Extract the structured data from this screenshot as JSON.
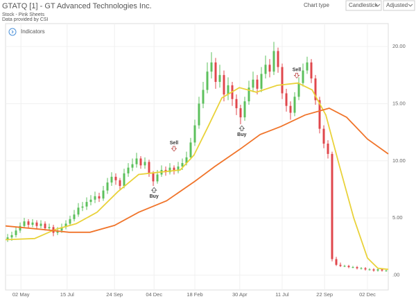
{
  "toolbar": {
    "chart_type_label": "Chart type",
    "chart_type": "Candlestick",
    "adjustment": "Adjusted",
    "indicators": "Indicators"
  },
  "chart_data": {
    "type": "candlestick",
    "title": "GTATQ [1] - GT Advanced Technologies Inc.",
    "subtitle": [
      "Stock - Pink Sheets",
      "Data provided by CSI"
    ],
    "up_color": "#5cc05c",
    "down_color": "#e0474c",
    "open": [
      3.1,
      3.3,
      3.5,
      3.9,
      4.3,
      4.7,
      4.4,
      4.6,
      4.3,
      4.5,
      4.1,
      4.2,
      3.7,
      3.9,
      4.2,
      4.5,
      4.9,
      5.3,
      5.9,
      6.0,
      6.4,
      6.6,
      6.9,
      6.7,
      7.4,
      8.1,
      8.6,
      8.3,
      7.8,
      8.9,
      9.4,
      9.7,
      10.2,
      9.6,
      9.9,
      8.9,
      8.2,
      8.8,
      9.2,
      9.0,
      9.4,
      9.1,
      9.5,
      9.8,
      10.3,
      11.6,
      13.1,
      15.0,
      16.2,
      17.8,
      18.6,
      16.9,
      17.5,
      15.8,
      16.6,
      15.4,
      14.6,
      13.8,
      15.2,
      16.4,
      17.1,
      16.3,
      17.6,
      18.4,
      17.8,
      19.6,
      18.2,
      15.9,
      14.8,
      14.2,
      15.6,
      16.8,
      17.9,
      18.6,
      17.2,
      15.3,
      12.8,
      11.5,
      10.6,
      1.4,
      0.9,
      0.8,
      0.8,
      0.7,
      0.7,
      0.6,
      0.6,
      0.5,
      0.5,
      0.4,
      0.5,
      0.4
    ],
    "high": [
      3.6,
      3.8,
      4.2,
      4.6,
      5.0,
      4.9,
      4.9,
      4.8,
      4.8,
      4.7,
      4.5,
      4.4,
      4.2,
      4.5,
      4.8,
      5.2,
      5.7,
      6.3,
      6.4,
      6.8,
      7.0,
      7.3,
      7.2,
      7.8,
      8.5,
      9.0,
      8.9,
      8.5,
      9.3,
      9.8,
      10.2,
      10.7,
      10.4,
      10.3,
      10.1,
      9.1,
      9.2,
      9.6,
      9.5,
      9.8,
      9.6,
      9.9,
      10.2,
      10.8,
      12.0,
      13.6,
      15.6,
      16.9,
      18.6,
      19.5,
      19.0,
      18.4,
      17.9,
      17.3,
      16.9,
      15.8,
      14.9,
      15.6,
      17.0,
      17.8,
      17.5,
      18.2,
      19.2,
      18.9,
      20.4,
      19.9,
      18.5,
      16.3,
      15.2,
      16.0,
      17.3,
      18.5,
      19.1,
      18.9,
      17.5,
      15.6,
      13.1,
      11.8,
      10.8,
      1.6,
      1.1,
      0.9,
      0.9,
      0.8,
      0.8,
      0.7,
      0.7,
      0.6,
      0.6,
      0.6,
      0.6,
      0.5
    ],
    "low": [
      2.9,
      3.0,
      3.3,
      3.7,
      4.1,
      4.1,
      4.2,
      4.0,
      4.1,
      3.9,
      3.9,
      3.4,
      3.5,
      3.7,
      4.0,
      4.3,
      4.7,
      5.1,
      5.6,
      5.7,
      6.1,
      6.3,
      6.4,
      6.5,
      7.1,
      7.8,
      7.9,
      7.4,
      7.6,
      8.6,
      9.1,
      9.4,
      9.3,
      9.3,
      8.6,
      7.8,
      8.0,
      8.6,
      8.7,
      8.8,
      8.8,
      8.9,
      9.2,
      9.6,
      10.1,
      11.3,
      12.8,
      14.6,
      15.9,
      17.2,
      16.3,
      16.4,
      15.2,
      15.3,
      14.8,
      14.0,
      13.2,
      13.5,
      14.9,
      16.0,
      15.8,
      16.0,
      17.2,
      17.3,
      17.5,
      17.7,
      15.4,
      14.3,
      13.6,
      13.9,
      15.3,
      16.5,
      17.6,
      16.8,
      14.9,
      12.4,
      11.1,
      10.2,
      1.2,
      0.8,
      0.7,
      0.7,
      0.6,
      0.6,
      0.5,
      0.5,
      0.4,
      0.4,
      0.3,
      0.3,
      0.3,
      0.3
    ],
    "close": [
      3.3,
      3.5,
      3.9,
      4.3,
      4.7,
      4.4,
      4.6,
      4.3,
      4.5,
      4.1,
      4.2,
      3.7,
      3.9,
      4.2,
      4.5,
      4.9,
      5.3,
      5.9,
      6.0,
      6.4,
      6.6,
      6.9,
      6.7,
      7.4,
      8.1,
      8.6,
      8.3,
      7.8,
      8.9,
      9.4,
      9.7,
      10.2,
      9.6,
      9.9,
      8.9,
      8.2,
      8.8,
      9.2,
      9.0,
      9.4,
      9.1,
      9.5,
      9.8,
      10.3,
      11.6,
      13.1,
      15.0,
      16.2,
      17.8,
      18.6,
      16.9,
      17.5,
      15.8,
      16.6,
      15.4,
      14.6,
      13.8,
      15.2,
      16.4,
      17.1,
      16.3,
      17.6,
      18.4,
      17.8,
      19.6,
      18.2,
      15.9,
      14.8,
      14.2,
      15.6,
      16.8,
      17.9,
      18.6,
      17.2,
      15.3,
      12.8,
      11.5,
      10.6,
      1.4,
      0.9,
      0.8,
      0.8,
      0.7,
      0.7,
      0.6,
      0.6,
      0.5,
      0.5,
      0.4,
      0.5,
      0.4,
      0.4
    ],
    "overlays": [
      {
        "color": "#e9d23a",
        "x": [
          -0.5,
          6.5,
          11.5,
          16.5,
          21.5,
          26.5,
          31.5,
          36.5,
          41.5,
          44.8,
          48.2,
          51.5,
          55.7,
          59.8,
          64.8,
          69.8,
          73.2,
          76.5,
          79.8,
          83.2,
          86.5,
          89,
          91.5
        ],
        "values": [
          3.1,
          3.2,
          4.0,
          4.5,
          5.5,
          7.3,
          8.8,
          9.0,
          9.2,
          10.5,
          13.0,
          15.5,
          16.4,
          16.0,
          16.6,
          16.8,
          16.2,
          14.0,
          9.5,
          5.0,
          1.5,
          0.6,
          0.5
        ]
      },
      {
        "color": "#f0742a",
        "x": [
          -0.5,
          8.2,
          14.8,
          19.8,
          25.7,
          31.5,
          38.2,
          45,
          49.8,
          55.8,
          60.7,
          65.7,
          71.5,
          77.3,
          81.5,
          86.5,
          91.5
        ],
        "values": [
          4.3,
          4.0,
          3.75,
          3.75,
          4.35,
          5.5,
          6.5,
          8.2,
          9.5,
          11.0,
          12.3,
          13.0,
          14.0,
          14.6,
          13.8,
          11.9,
          10.6
        ]
      }
    ],
    "annotations": [
      {
        "text": "Sell",
        "x": 40,
        "y": 10.9,
        "direction": "down"
      },
      {
        "text": "Buy",
        "x": 35.2,
        "y": 7.6,
        "direction": "up"
      },
      {
        "text": "Buy",
        "x": 56.3,
        "y": 13.0,
        "direction": "up"
      },
      {
        "text": "Sell",
        "x": 69.5,
        "y": 17.3,
        "direction": "down"
      }
    ],
    "xlim": [
      -0.5,
      91.5
    ],
    "ylim": [
      -1.3,
      22.0
    ],
    "xticks": [
      {
        "value": 3.2,
        "label": "02 May"
      },
      {
        "value": 14.3,
        "label": "15 Jul"
      },
      {
        "value": 25.7,
        "label": "24 Sep"
      },
      {
        "value": 35.2,
        "label": "04 Dec"
      },
      {
        "value": 45,
        "label": "18 Feb"
      },
      {
        "value": 55.8,
        "label": "30 Apr"
      },
      {
        "value": 66,
        "label": "11 Jul"
      },
      {
        "value": 76.2,
        "label": "22 Sep"
      },
      {
        "value": 86.5,
        "label": "02 Dec"
      }
    ],
    "yticks": [
      {
        "value": 0,
        "label": ".00"
      },
      {
        "value": 5,
        "label": "5.00"
      },
      {
        "value": 10,
        "label": "10.00"
      },
      {
        "value": 15,
        "label": "15.00"
      },
      {
        "value": 20,
        "label": "20.00"
      }
    ],
    "grid": true
  }
}
